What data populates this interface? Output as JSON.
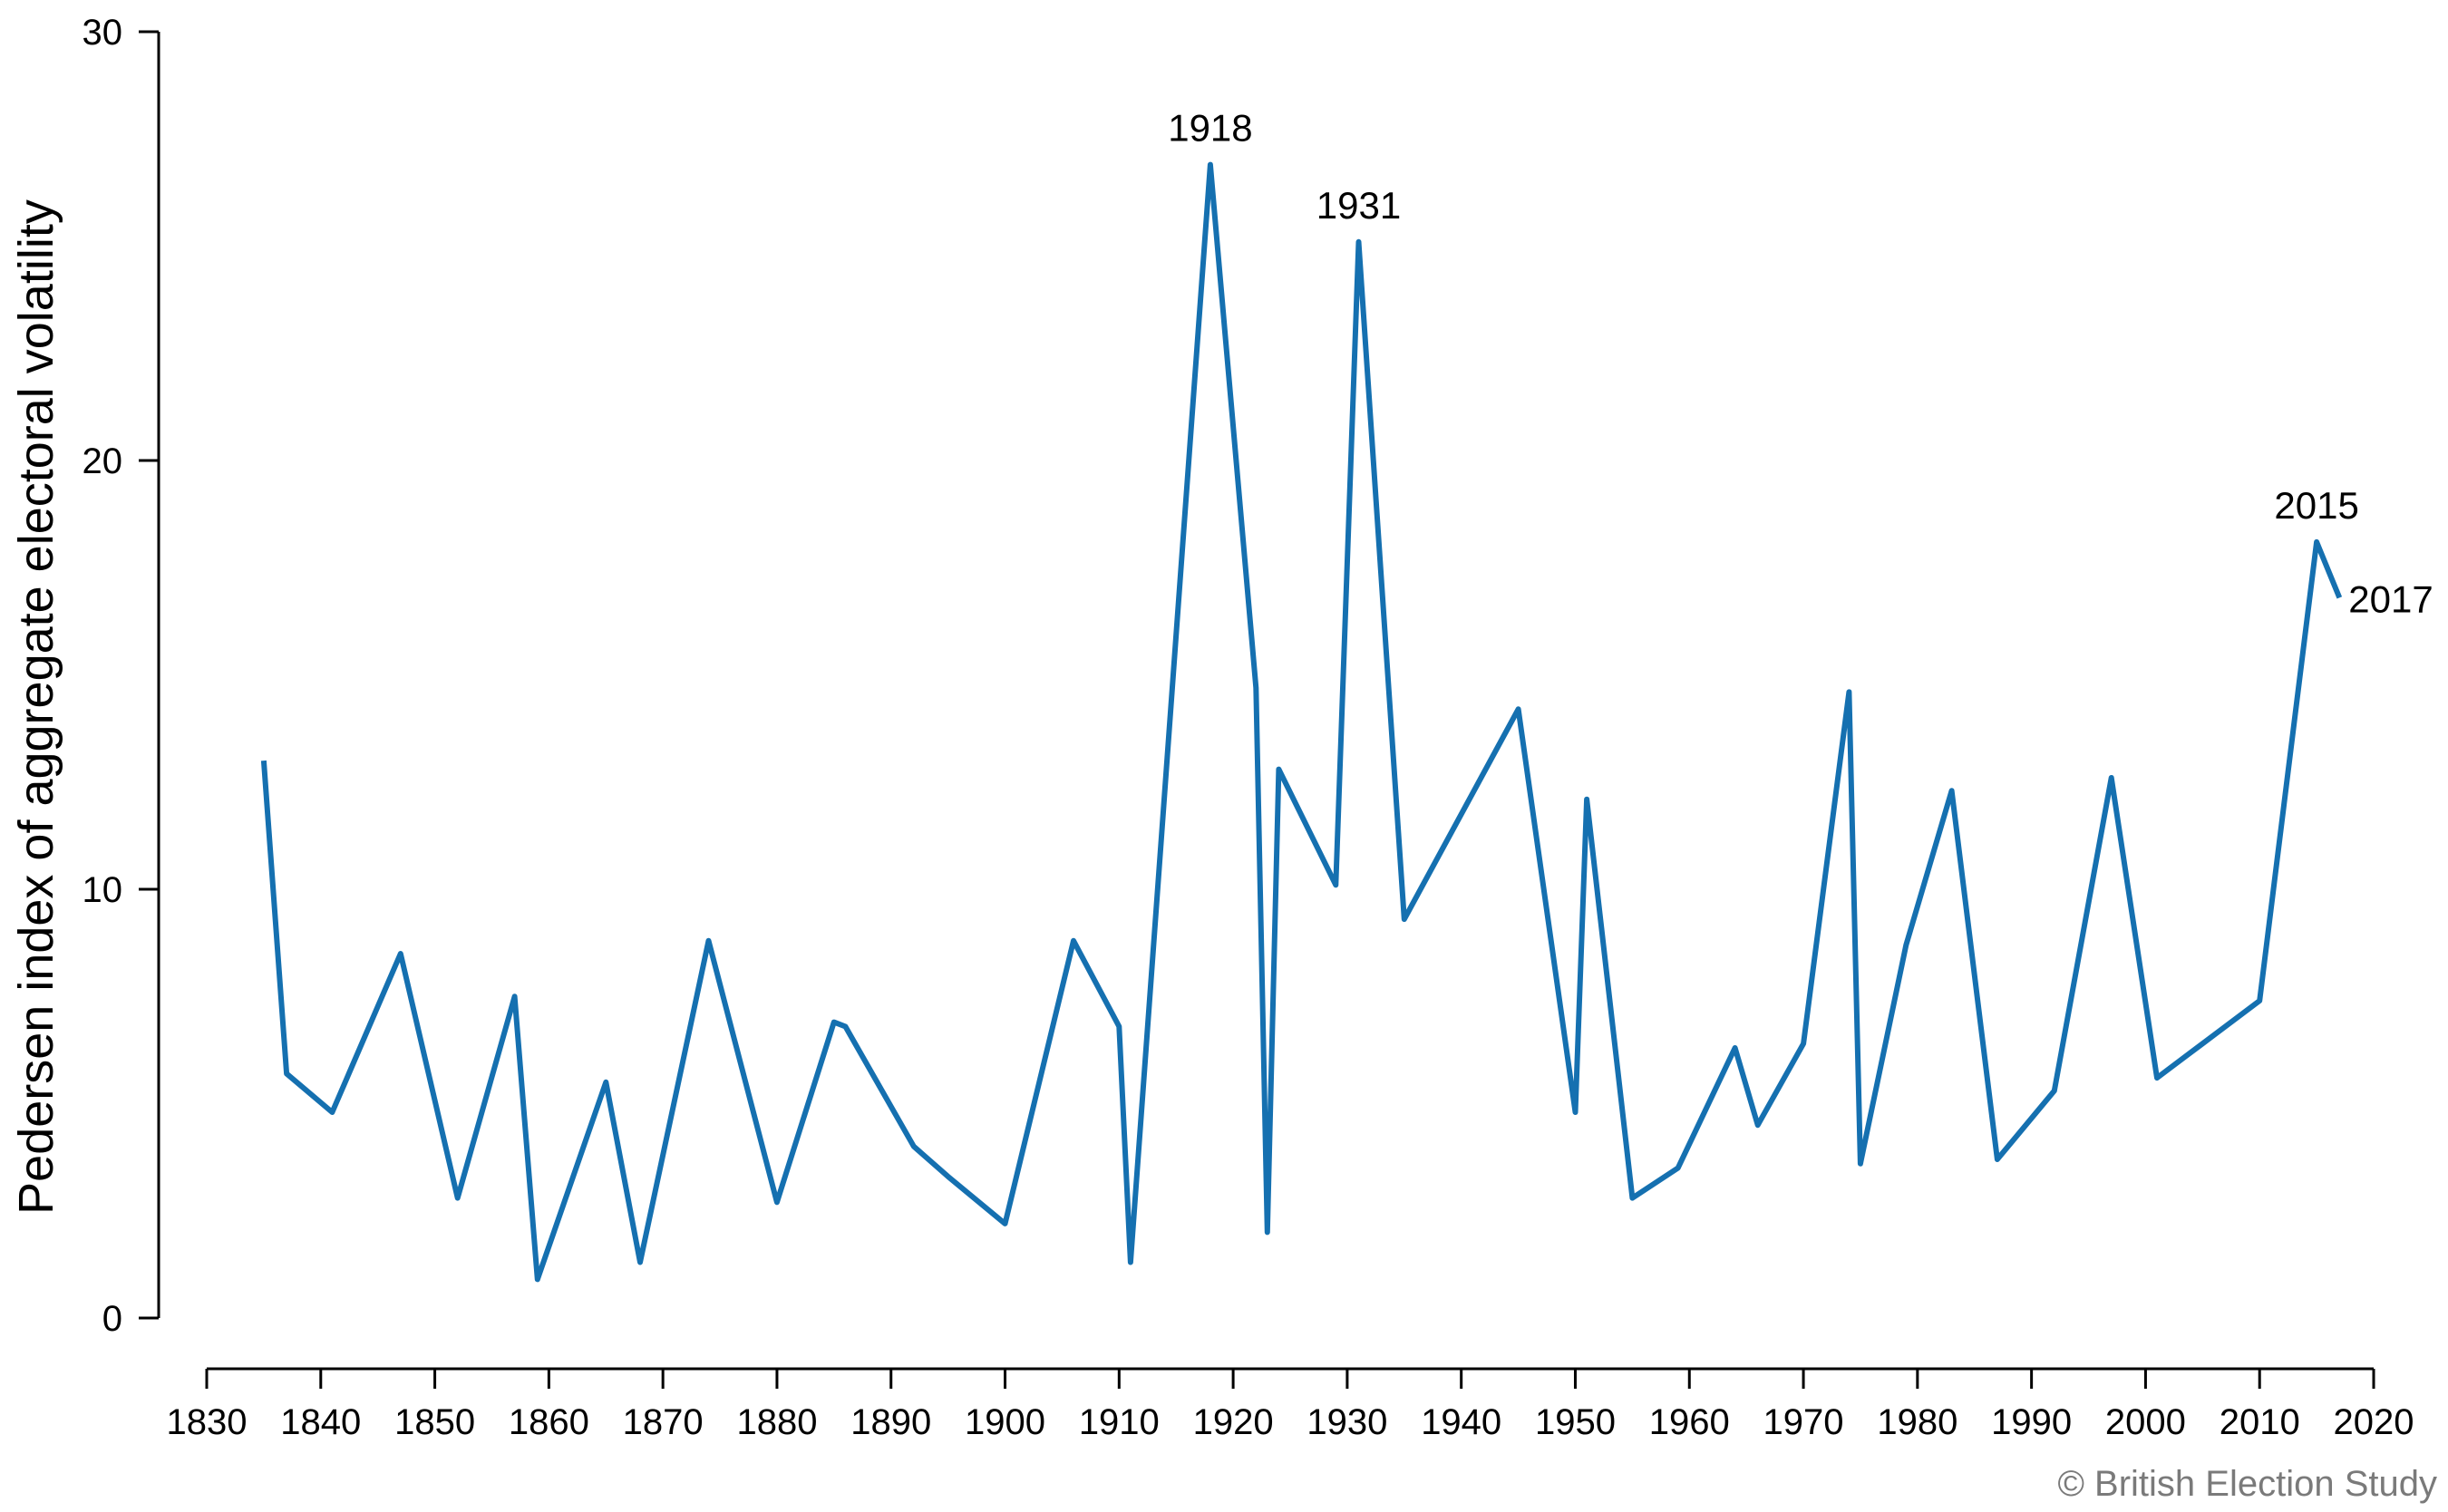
{
  "chart_data": {
    "type": "line",
    "title": "",
    "xlabel": "",
    "ylabel": "Pedersen index of aggregate electoral volatility",
    "xlim": [
      1830,
      2020
    ],
    "ylim": [
      0,
      30
    ],
    "x_ticks": [
      1830,
      1840,
      1850,
      1860,
      1870,
      1880,
      1890,
      1900,
      1910,
      1920,
      1930,
      1940,
      1950,
      1960,
      1970,
      1980,
      1990,
      2000,
      2010,
      2020
    ],
    "y_ticks": [
      0,
      10,
      20,
      30
    ],
    "series": [
      {
        "name": "Volatility",
        "color": "#1570b0",
        "x": [
          1835,
          1837,
          1841,
          1847,
          1852,
          1857,
          1859,
          1865,
          1868,
          1874,
          1880,
          1885,
          1886,
          1892,
          1895,
          1900,
          1906,
          1910,
          1911,
          1918,
          1922,
          1923,
          1924,
          1929,
          1931,
          1935,
          1945,
          1950,
          1951,
          1955,
          1959,
          1964,
          1966,
          1970,
          1974,
          1975,
          1979,
          1983,
          1987,
          1992,
          1997,
          2001,
          2005,
          2010,
          2015,
          2017
        ],
        "y": [
          13.0,
          5.7,
          4.8,
          8.5,
          2.8,
          7.5,
          0.9,
          5.5,
          1.3,
          8.8,
          2.7,
          6.9,
          6.8,
          4.0,
          3.3,
          2.2,
          8.8,
          6.8,
          1.3,
          26.9,
          14.7,
          2.0,
          12.8,
          10.1,
          25.1,
          9.3,
          14.2,
          4.8,
          12.1,
          2.8,
          3.5,
          6.3,
          4.5,
          6.4,
          14.6,
          3.6,
          8.7,
          12.3,
          3.7,
          5.3,
          12.6,
          5.6,
          6.4,
          7.4,
          18.1,
          16.8
        ]
      }
    ],
    "annotations": [
      {
        "text": "1918",
        "x": 1918,
        "y": 26.9
      },
      {
        "text": "1931",
        "x": 1931,
        "y": 25.1
      },
      {
        "text": "2015",
        "x": 2015,
        "y": 18.1
      },
      {
        "text": "2017",
        "x": 2017,
        "y": 16.8
      }
    ],
    "grid": false
  },
  "credit": "© British Election Study"
}
